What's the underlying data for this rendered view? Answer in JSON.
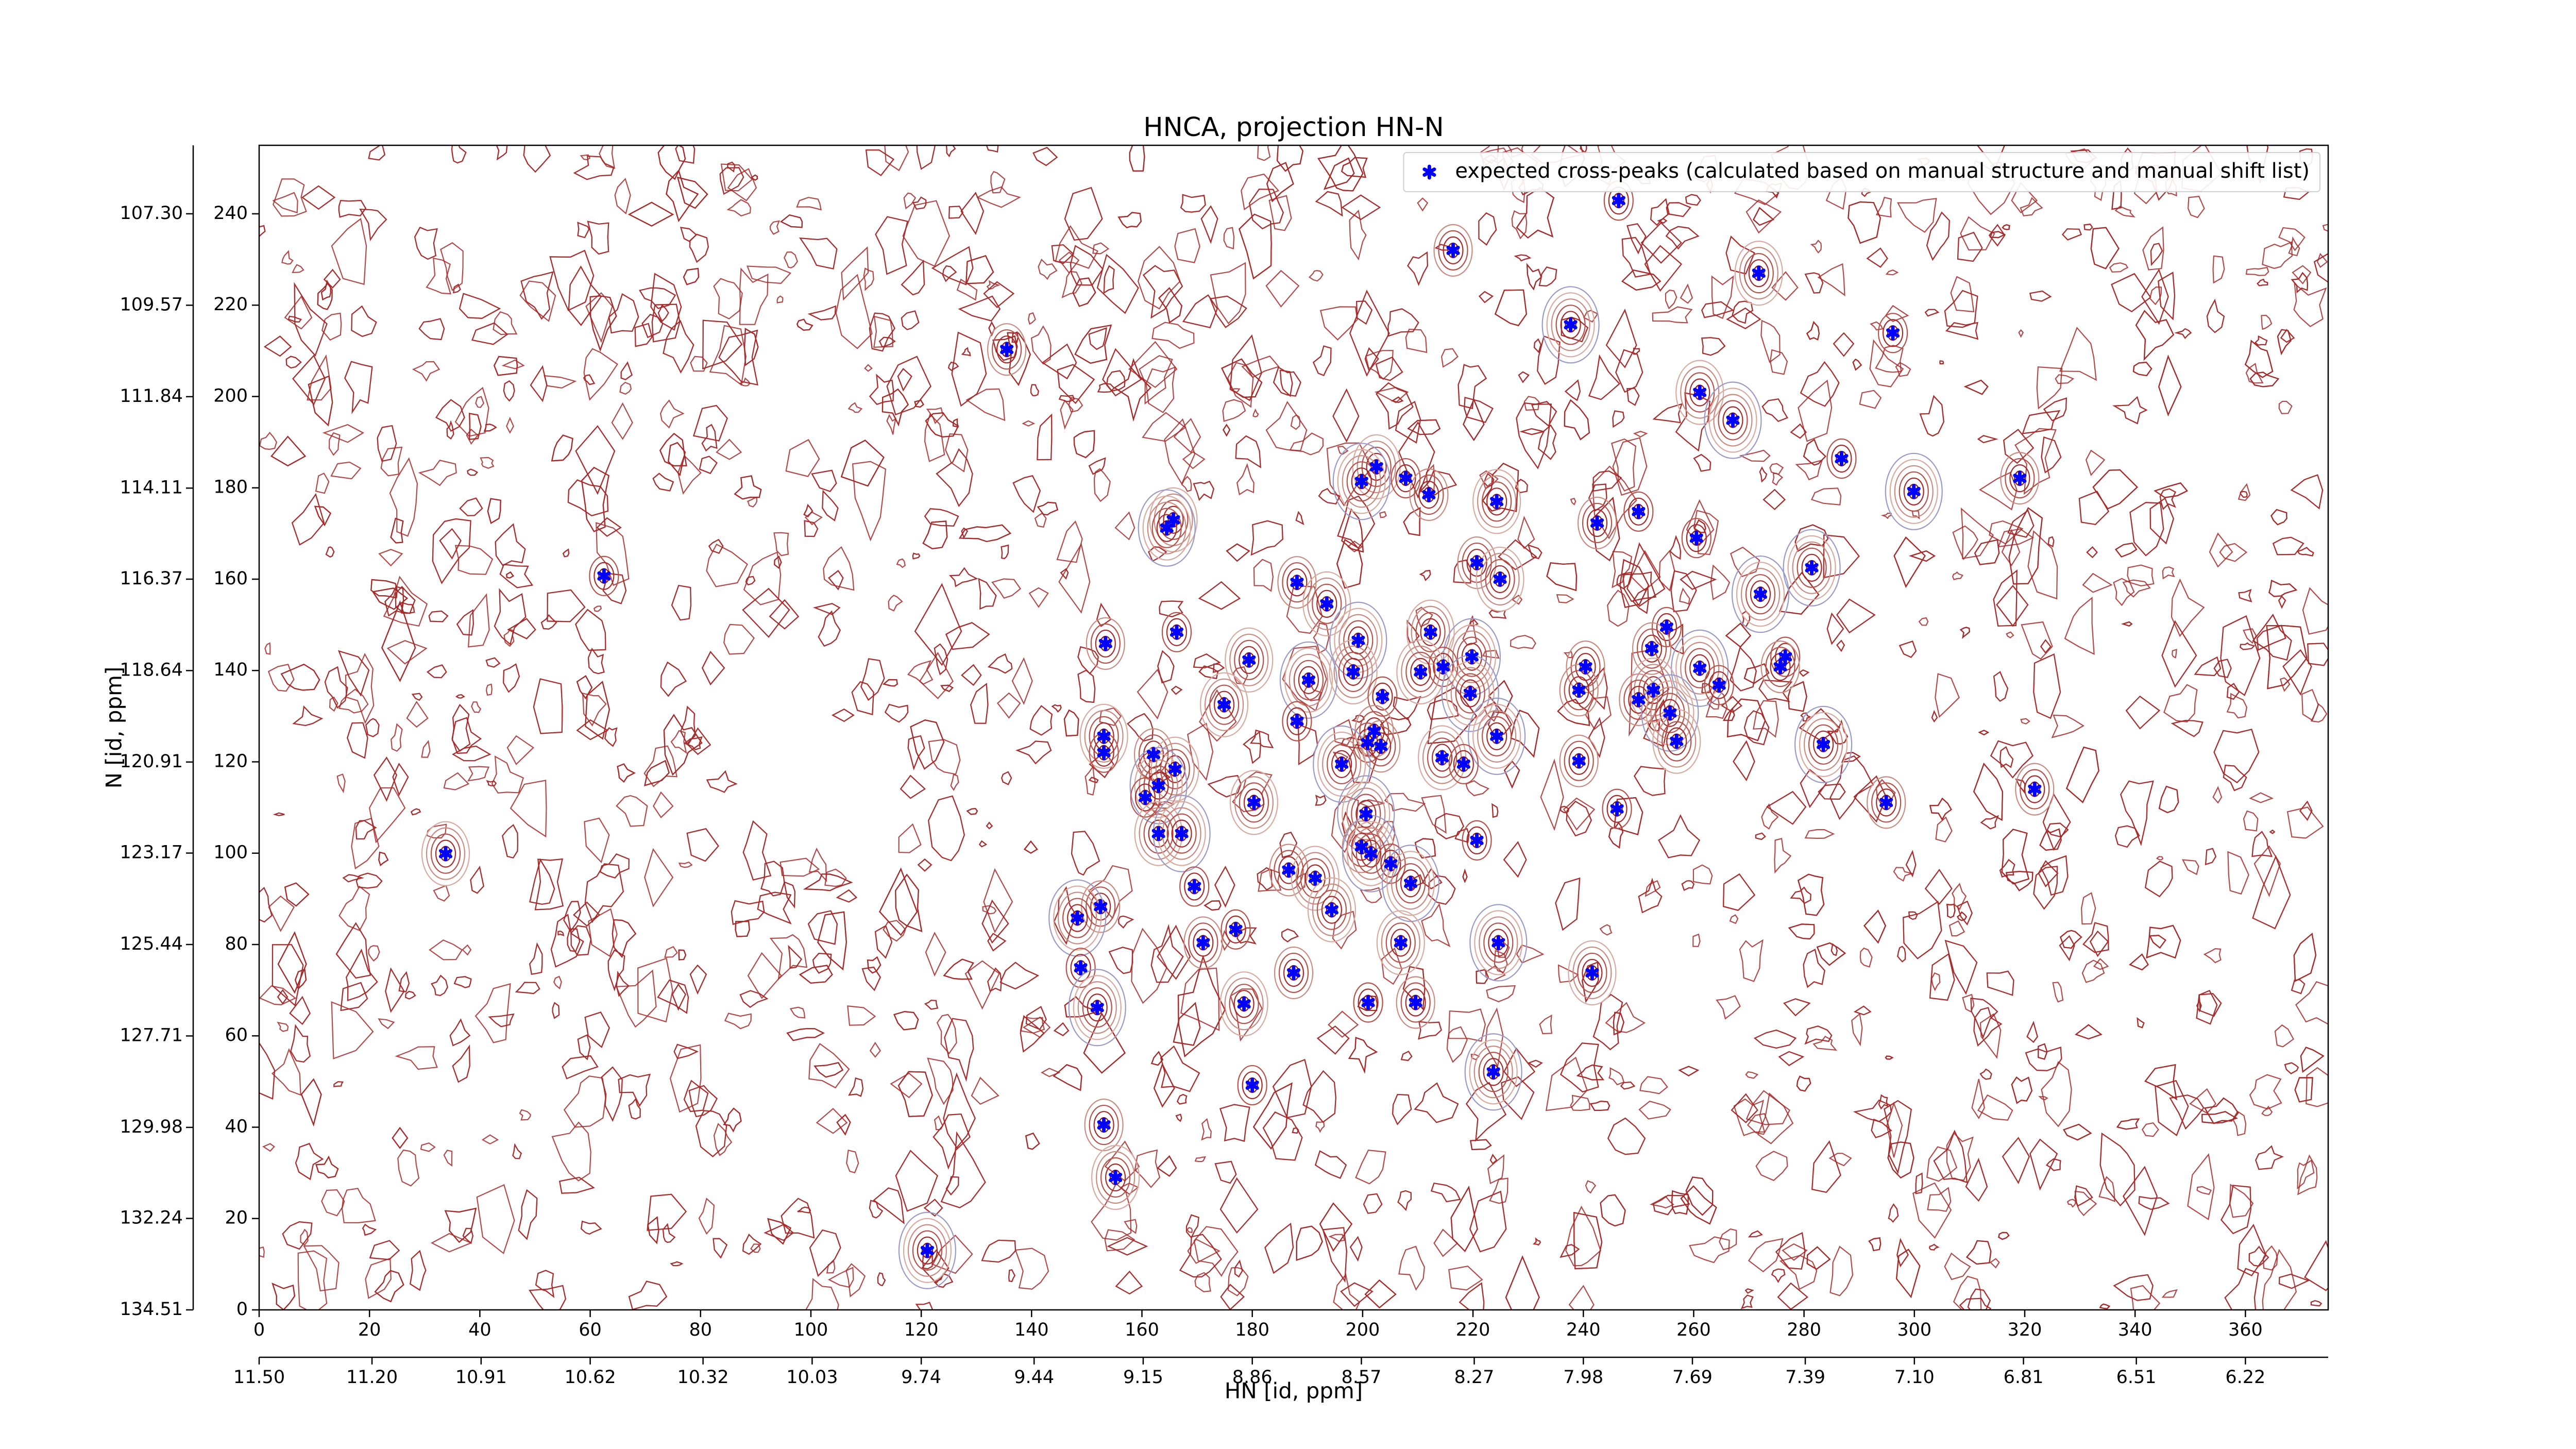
{
  "chart_data": {
    "type": "scatter",
    "title": "HNCA, projection HN-N",
    "xlabel": "HN [id, ppm]",
    "ylabel": "N [id, ppm]",
    "legend": "upper right",
    "xlim": [
      0,
      375
    ],
    "ylim": [
      0,
      255
    ],
    "xticks": [
      0,
      20,
      40,
      60,
      80,
      100,
      120,
      140,
      160,
      180,
      200,
      220,
      240,
      260,
      280,
      300,
      320,
      340,
      360
    ],
    "yticks": [
      0,
      20,
      40,
      60,
      80,
      100,
      120,
      140,
      160,
      180,
      200,
      220,
      240
    ],
    "x2lim": [
      11.5,
      6.0
    ],
    "x2ticks": [
      {
        "value": 11.5,
        "label": "11.50"
      },
      {
        "value": 11.2,
        "label": "11.20"
      },
      10.91,
      10.62,
      10.32,
      10.03,
      9.74,
      9.44,
      9.15,
      8.86,
      8.57,
      8.27,
      7.98,
      7.69,
      7.39,
      {
        "value": 7.1,
        "label": "7.10"
      },
      6.81,
      6.51,
      6.22
    ],
    "y2lim": [
      134.51,
      105.6
    ],
    "y2ticks": [
      {
        "value": 107.3,
        "label": "107.30"
      },
      109.57,
      111.84,
      114.11,
      116.37,
      118.64,
      120.91,
      123.17,
      125.44,
      127.71,
      129.98,
      132.24,
      134.51
    ],
    "series": [
      {
        "name": "expected cross-peaks (calculated based on manual structure and manual shift list)",
        "color": "#0000ff",
        "x": [
          246.4,
          216.4,
          271.8,
          237.7,
          296.1,
          135.5,
          261.1,
          267.1,
          286.8,
          319.1,
          202.5,
          199.8,
          207.8,
          212.0,
          224.3,
          299.9,
          250.0,
          242.5,
          165.7,
          164.5,
          260.5,
          220.7,
          224.9,
          281.4,
          62.5,
          188.1,
          193.5,
          272.1,
          166.3,
          153.4,
          212.3,
          199.2,
          255.1,
          252.4,
          179.4,
          219.8,
          214.6,
          240.4,
          210.5,
          261.1,
          276.6,
          275.7,
          198.3,
          190.2,
          264.6,
          239.2,
          252.7,
          219.5,
          203.6,
          250.0,
          174.9,
          255.7,
          188.1,
          202.1,
          153.1,
          224.3,
          200.9,
          203.3,
          256.9,
          283.5,
          153.1,
          162.1,
          214.4,
          196.2,
          218.3,
          239.2,
          166.0,
          163.0,
          160.6,
          321.8,
          180.3,
          200.6,
          246.1,
          294.9,
          163.0,
          167.2,
          220.7,
          199.8,
          33.8,
          201.5,
          205.1,
          186.6,
          191.4,
          208.7,
          169.5,
          152.5,
          194.4,
          148.3,
          177.0,
          171.1,
          206.9,
          224.6,
          148.9,
          187.5,
          241.6,
          151.9,
          201.0,
          209.6,
          178.5,
          223.7,
          180.0,
          153.1,
          155.2,
          121.1
        ],
        "values": [
          242.9,
          232.0,
          227.0,
          215.7,
          213.9,
          210.3,
          200.9,
          194.8,
          186.4,
          182.1,
          184.6,
          181.4,
          182.1,
          178.5,
          177.0,
          179.2,
          174.8,
          172.3,
          173.0,
          171.2,
          169.0,
          163.6,
          160.0,
          162.5,
          160.7,
          159.3,
          154.6,
          156.7,
          148.4,
          145.9,
          148.4,
          146.6,
          149.5,
          144.8,
          142.3,
          143.0,
          140.8,
          140.8,
          139.7,
          140.5,
          143.0,
          140.8,
          139.7,
          137.9,
          136.8,
          135.7,
          135.7,
          135.0,
          134.3,
          133.6,
          132.5,
          130.7,
          128.9,
          126.7,
          125.6,
          125.6,
          124.2,
          123.4,
          124.5,
          123.8,
          122.0,
          121.6,
          120.9,
          119.5,
          119.5,
          120.2,
          118.4,
          114.8,
          112.2,
          114.0,
          111.1,
          108.6,
          109.7,
          111.1,
          104.3,
          104.3,
          102.8,
          101.4,
          99.9,
          99.9,
          97.7,
          96.3,
          94.5,
          93.4,
          92.7,
          88.3,
          87.6,
          85.8,
          83.3,
          80.4,
          80.4,
          80.4,
          74.9,
          73.8,
          73.8,
          66.2,
          67.3,
          67.3,
          67.0,
          52.1,
          49.2,
          40.5,
          29.0,
          13.0
        ]
      }
    ]
  }
}
